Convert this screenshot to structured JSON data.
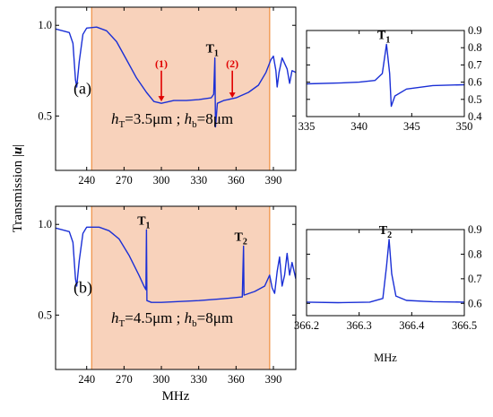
{
  "figure": {
    "ylabel": "Transmission |u|",
    "xlabel_bottom": "MHz",
    "xlabel_inset_b": "MHz"
  },
  "colors": {
    "curve": "#1a2fd6",
    "band_fill": "#f8d2bb",
    "band_edge": "#f09040",
    "arrow": "#e00000"
  },
  "chart_data": [
    {
      "panel": "a",
      "type": "line",
      "panel_label": "(a)",
      "params": {
        "hT_sym": "h",
        "hT_sub": "T",
        "hT_val": "=3.5μm ;",
        "hb_sym": "h",
        "hb_sub": "b",
        "hb_val": "=8μm"
      },
      "xlim": [
        215,
        408
      ],
      "ylim": [
        0.2,
        1.1
      ],
      "x_ticks": [
        "240",
        "270",
        "300",
        "330",
        "360",
        "390"
      ],
      "y_ticks": [
        "0.5",
        "1.0"
      ],
      "band": [
        244,
        387
      ],
      "markers": [
        {
          "id": "T_1",
          "label": "T",
          "sub": "1",
          "x": 343,
          "y": 0.82
        }
      ],
      "arrows": [
        {
          "label": "(1)",
          "x": 300,
          "y_from": 0.75,
          "y_to": 0.58
        },
        {
          "label": "(2)",
          "x": 357,
          "y_from": 0.75,
          "y_to": 0.6
        }
      ],
      "series": [
        {
          "values": [
            [
              215,
              0.98
            ],
            [
              226,
              0.96
            ],
            [
              229,
              0.9
            ],
            [
              231,
              0.7
            ],
            [
              232,
              0.66
            ],
            [
              234,
              0.8
            ],
            [
              237,
              0.95
            ],
            [
              240,
              0.985
            ],
            [
              248,
              0.99
            ],
            [
              256,
              0.97
            ],
            [
              264,
              0.91
            ],
            [
              272,
              0.81
            ],
            [
              280,
              0.71
            ],
            [
              288,
              0.63
            ],
            [
              294,
              0.58
            ],
            [
              300,
              0.57
            ],
            [
              310,
              0.585
            ],
            [
              320,
              0.585
            ],
            [
              330,
              0.59
            ],
            [
              340,
              0.6
            ],
            [
              342,
              0.62
            ],
            [
              343,
              0.82
            ],
            [
              343.5,
              0.44
            ],
            [
              345,
              0.57
            ],
            [
              350,
              0.585
            ],
            [
              360,
              0.6
            ],
            [
              370,
              0.63
            ],
            [
              378,
              0.67
            ],
            [
              384,
              0.74
            ],
            [
              388,
              0.81
            ],
            [
              390,
              0.83
            ],
            [
              392,
              0.75
            ],
            [
              393,
              0.66
            ],
            [
              394.5,
              0.74
            ],
            [
              397,
              0.82
            ],
            [
              401,
              0.76
            ],
            [
              403,
              0.68
            ],
            [
              405,
              0.75
            ],
            [
              408,
              0.74
            ]
          ]
        }
      ]
    },
    {
      "panel": "a-inset",
      "type": "line",
      "xlim": [
        335,
        350
      ],
      "ylim": [
        0.4,
        0.9
      ],
      "x_ticks": [
        "335",
        "340",
        "345",
        "350"
      ],
      "y_ticks": [
        "0.4",
        "0.5",
        "0.6",
        "0.7",
        "0.8",
        "0.9"
      ],
      "markers": [
        {
          "id": "T_1",
          "label": "T",
          "sub": "1",
          "x": 342.6,
          "y": 0.82
        }
      ],
      "series": [
        {
          "values": [
            [
              335,
              0.59
            ],
            [
              338,
              0.595
            ],
            [
              340,
              0.6
            ],
            [
              341.5,
              0.61
            ],
            [
              342.2,
              0.65
            ],
            [
              342.6,
              0.82
            ],
            [
              342.9,
              0.65
            ],
            [
              343.05,
              0.46
            ],
            [
              343.4,
              0.52
            ],
            [
              344.5,
              0.56
            ],
            [
              347,
              0.58
            ],
            [
              350,
              0.585
            ]
          ]
        }
      ]
    },
    {
      "panel": "b",
      "type": "line",
      "panel_label": "(b)",
      "params": {
        "hT_sym": "h",
        "hT_sub": "T",
        "hT_val": "=4.5μm ;",
        "hb_sym": "h",
        "hb_sub": "b",
        "hb_val": "=8μm"
      },
      "xlim": [
        215,
        408
      ],
      "ylim": [
        0.2,
        1.1
      ],
      "x_ticks": [
        "240",
        "270",
        "300",
        "330",
        "360",
        "390"
      ],
      "y_ticks": [
        "0.5",
        "1.0"
      ],
      "band": [
        244,
        387
      ],
      "markers": [
        {
          "id": "T_1",
          "label": "T",
          "sub": "1",
          "x": 288,
          "y": 0.97
        },
        {
          "id": "T_2",
          "label": "T",
          "sub": "2",
          "x": 366,
          "y": 0.88
        }
      ],
      "series": [
        {
          "values": [
            [
              215,
              0.98
            ],
            [
              226,
              0.96
            ],
            [
              229,
              0.9
            ],
            [
              231,
              0.7
            ],
            [
              232,
              0.66
            ],
            [
              234,
              0.8
            ],
            [
              237,
              0.95
            ],
            [
              240,
              0.985
            ],
            [
              250,
              0.985
            ],
            [
              258,
              0.965
            ],
            [
              266,
              0.92
            ],
            [
              274,
              0.83
            ],
            [
              282,
              0.72
            ],
            [
              286,
              0.66
            ],
            [
              287.6,
              0.64
            ],
            [
              288,
              0.97
            ],
            [
              288.4,
              0.58
            ],
            [
              292,
              0.57
            ],
            [
              300,
              0.57
            ],
            [
              315,
              0.575
            ],
            [
              330,
              0.58
            ],
            [
              350,
              0.59
            ],
            [
              365,
              0.6
            ],
            [
              366,
              0.88
            ],
            [
              366.4,
              0.61
            ],
            [
              375,
              0.63
            ],
            [
              383,
              0.66
            ],
            [
              387,
              0.72
            ],
            [
              389,
              0.65
            ],
            [
              391,
              0.62
            ],
            [
              393,
              0.74
            ],
            [
              395,
              0.82
            ],
            [
              397,
              0.66
            ],
            [
              399,
              0.72
            ],
            [
              401,
              0.84
            ],
            [
              403,
              0.72
            ],
            [
              405,
              0.79
            ],
            [
              408,
              0.7
            ]
          ]
        }
      ]
    },
    {
      "panel": "b-inset",
      "type": "line",
      "xlim": [
        366.2,
        366.5
      ],
      "ylim": [
        0.55,
        0.9
      ],
      "x_ticks": [
        "366.2",
        "366.3",
        "366.4",
        "366.5"
      ],
      "y_ticks": [
        "0.6",
        "0.7",
        "0.8",
        "0.9"
      ],
      "markers": [
        {
          "id": "T_2",
          "label": "T",
          "sub": "2",
          "x": 366.355,
          "y": 0.86
        }
      ],
      "series": [
        {
          "values": [
            [
              366.2,
              0.605
            ],
            [
              366.26,
              0.603
            ],
            [
              366.32,
              0.605
            ],
            [
              366.345,
              0.62
            ],
            [
              366.352,
              0.75
            ],
            [
              366.357,
              0.86
            ],
            [
              366.362,
              0.72
            ],
            [
              366.37,
              0.63
            ],
            [
              366.39,
              0.612
            ],
            [
              366.44,
              0.607
            ],
            [
              366.5,
              0.605
            ]
          ]
        }
      ]
    }
  ]
}
